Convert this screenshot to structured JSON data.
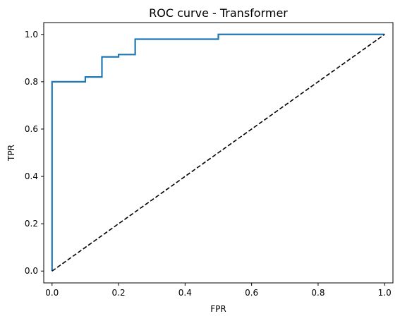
{
  "chart_data": {
    "type": "line",
    "title": "ROC curve - Transformer",
    "xlabel": "FPR",
    "ylabel": "TPR",
    "xlim": [
      -0.025,
      1.025
    ],
    "ylim": [
      -0.05,
      1.05
    ],
    "x_ticks": [
      0.0,
      0.2,
      0.4,
      0.6,
      0.8,
      1.0
    ],
    "x_tick_labels": [
      "0.0",
      "0.2",
      "0.4",
      "0.6",
      "0.8",
      "1.0"
    ],
    "y_ticks": [
      0.0,
      0.2,
      0.4,
      0.6,
      0.8,
      1.0
    ],
    "y_tick_labels": [
      "0.0",
      "0.2",
      "0.4",
      "0.6",
      "0.8",
      "1.0"
    ],
    "grid": false,
    "legend": "none",
    "series": [
      {
        "style": "solid",
        "color": "#1f77b4",
        "x": [
          0.0,
          0.0,
          0.1,
          0.1,
          0.15,
          0.15,
          0.2,
          0.2,
          0.25,
          0.25,
          0.5,
          0.5,
          1.0
        ],
        "y": [
          0.0,
          0.8,
          0.8,
          0.82,
          0.82,
          0.905,
          0.905,
          0.915,
          0.915,
          0.98,
          0.98,
          1.0,
          1.0
        ]
      },
      {
        "style": "dashed",
        "color": "#000000",
        "x": [
          0.0,
          1.0
        ],
        "y": [
          0.0,
          1.0
        ]
      }
    ]
  }
}
